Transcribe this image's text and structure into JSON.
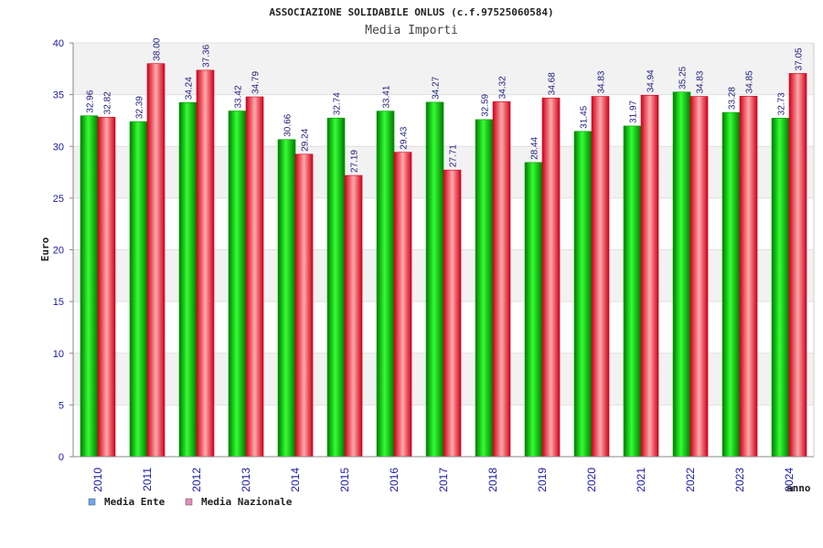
{
  "chart_data": {
    "type": "bar",
    "title": "ASSOCIAZIONE SOLIDABILE ONLUS (c.f.97525060584)",
    "subtitle": "Media Importi",
    "xlabel": "anno",
    "ylabel": "Euro",
    "ylim": [
      0,
      40
    ],
    "yticks": [
      0,
      5,
      10,
      15,
      20,
      25,
      30,
      35,
      40
    ],
    "grid": true,
    "legend_position": "bottom-left",
    "categories": [
      "2010",
      "2011",
      "2012",
      "2013",
      "2014",
      "2015",
      "2016",
      "2017",
      "2018",
      "2019",
      "2020",
      "2021",
      "2022",
      "2023",
      "2024"
    ],
    "series": [
      {
        "name": "Media Ente",
        "color": "#00b000",
        "legend_color": "#6aa6f0",
        "values": [
          32.96,
          32.39,
          34.24,
          33.42,
          30.66,
          32.74,
          33.41,
          34.27,
          32.59,
          28.44,
          31.45,
          31.97,
          35.25,
          33.28,
          32.73
        ],
        "labels": [
          "32.96",
          "32.39",
          "34.24",
          "33.42",
          "30.66",
          "32.74",
          "33.41",
          "34.27",
          "32.59",
          "28.44",
          "31.45",
          "31.97",
          "35.25",
          "33.28",
          "32.73"
        ]
      },
      {
        "name": "Media Nazionale",
        "color": "#e0102a",
        "legend_color": "#e58ab8",
        "values": [
          32.82,
          38.0,
          37.36,
          34.79,
          29.24,
          27.19,
          29.43,
          27.71,
          34.32,
          34.68,
          34.83,
          34.94,
          34.83,
          34.85,
          37.05
        ],
        "labels": [
          "32.82",
          "38.00",
          "37.36",
          "34.79",
          "29.24",
          "27.19",
          "29.43",
          "27.71",
          "34.32",
          "34.68",
          "34.83",
          "34.94",
          "34.83",
          "34.85",
          "37.05"
        ]
      }
    ]
  }
}
